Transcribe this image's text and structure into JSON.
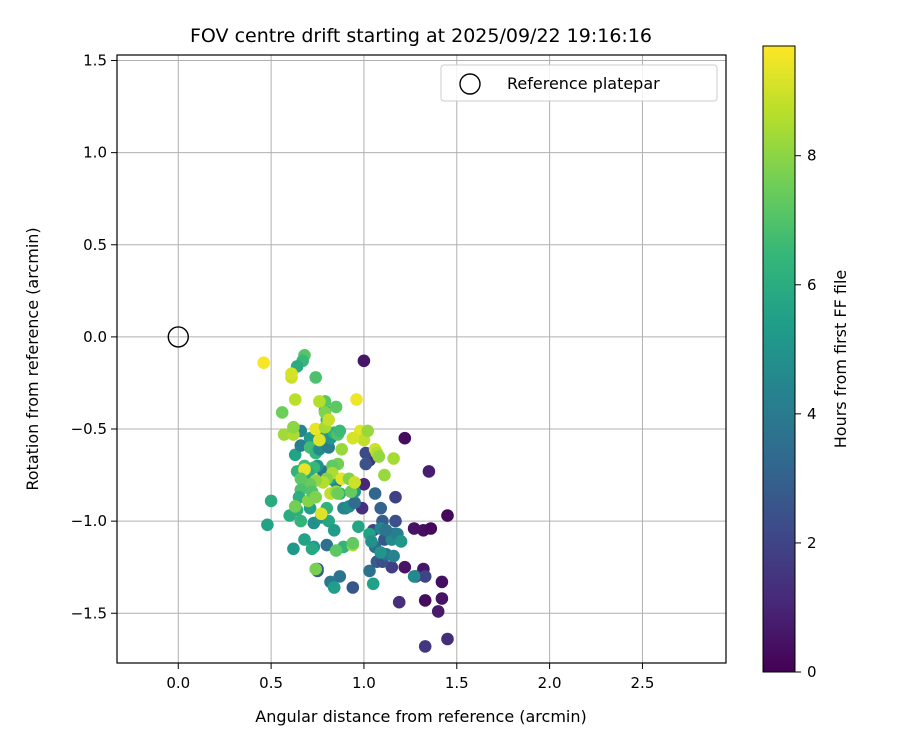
{
  "chart_data": {
    "type": "scatter",
    "title": "FOV centre drift starting at 2025/09/22 19:16:16",
    "xlabel": "Angular distance from reference (arcmin)",
    "ylabel": "Rotation from reference (arcmin)",
    "xlim": [
      -0.33,
      2.95
    ],
    "ylim": [
      -1.77,
      1.53
    ],
    "xticks": [
      0.0,
      0.5,
      1.0,
      1.5,
      2.0,
      2.5
    ],
    "xtick_labels": [
      "0.0",
      "0.5",
      "1.0",
      "1.5",
      "2.0",
      "2.5"
    ],
    "yticks": [
      -1.5,
      -1.0,
      -0.5,
      0.0,
      0.5,
      1.0,
      1.5
    ],
    "ytick_labels": [
      "−1.5",
      "−1.0",
      "−0.5",
      "0.0",
      "0.5",
      "1.0",
      "1.5"
    ],
    "grid": true,
    "legend": {
      "position": "top-right",
      "entries": [
        "Reference platepar"
      ]
    },
    "reference_point": {
      "x": 0.0,
      "y": 0.0
    },
    "colorbar": {
      "label": "Hours from first FF file",
      "min": 0,
      "max": 9.7,
      "ticks": [
        0,
        2,
        4,
        6,
        8
      ],
      "tick_labels": [
        "0",
        "2",
        "4",
        "6",
        "8"
      ],
      "colormap": [
        "#440154",
        "#482878",
        "#3e4989",
        "#31688e",
        "#26828e",
        "#1f9e89",
        "#35b779",
        "#6ece58",
        "#b5de2b",
        "#fde725"
      ]
    },
    "points": [
      [
        1.0,
        -0.13,
        0.6
      ],
      [
        1.22,
        -0.55,
        0.3
      ],
      [
        1.35,
        -0.73,
        0.8
      ],
      [
        1.45,
        -0.97,
        0.2
      ],
      [
        1.32,
        -1.05,
        0.4
      ],
      [
        1.27,
        -1.04,
        0.5
      ],
      [
        1.36,
        -1.04,
        0.2
      ],
      [
        1.32,
        -1.26,
        0.6
      ],
      [
        1.22,
        -1.25,
        0.5
      ],
      [
        1.42,
        -1.33,
        0.4
      ],
      [
        1.33,
        -1.43,
        0.3
      ],
      [
        1.42,
        -1.42,
        0.5
      ],
      [
        1.4,
        -1.49,
        0.7
      ],
      [
        1.45,
        -1.64,
        1.2
      ],
      [
        1.33,
        -1.68,
        1.6
      ],
      [
        1.19,
        -1.44,
        1.3
      ],
      [
        1.28,
        -1.3,
        2.2
      ],
      [
        1.33,
        -1.3,
        2.0
      ],
      [
        1.15,
        -1.25,
        1.8
      ],
      [
        1.17,
        -0.87,
        1.9
      ],
      [
        1.17,
        -1.0,
        2.4
      ],
      [
        1.16,
        -1.07,
        3.3
      ],
      [
        1.11,
        -1.1,
        2.6
      ],
      [
        1.1,
        -1.0,
        2.9
      ],
      [
        1.09,
        -0.93,
        3.1
      ],
      [
        1.06,
        -0.85,
        3.2
      ],
      [
        1.03,
        -0.67,
        1.4
      ],
      [
        1.01,
        -0.63,
        2.2
      ],
      [
        1.01,
        -0.69,
        2.5
      ],
      [
        0.99,
        -0.93,
        1.3
      ],
      [
        1.0,
        -0.8,
        1.1
      ],
      [
        1.05,
        -1.05,
        2.1
      ],
      [
        1.06,
        -1.14,
        3.4
      ],
      [
        1.03,
        -1.27,
        3.6
      ],
      [
        1.07,
        -1.22,
        2.8
      ],
      [
        1.1,
        -1.22,
        2.4
      ],
      [
        1.12,
        -1.18,
        3.7
      ],
      [
        1.16,
        -1.19,
        4.3
      ],
      [
        1.17,
        -1.07,
        4.1
      ],
      [
        1.27,
        -1.3,
        4.6
      ],
      [
        0.94,
        -1.36,
        2.6
      ],
      [
        0.9,
        -0.93,
        3.3
      ],
      [
        0.87,
        -1.3,
        3.7
      ],
      [
        0.82,
        -1.33,
        3.9
      ],
      [
        0.84,
        -1.36,
        5.4
      ],
      [
        0.8,
        -1.13,
        3.6
      ],
      [
        0.75,
        -1.26,
        2.2
      ],
      [
        0.75,
        -1.27,
        2.8
      ],
      [
        0.73,
        -1.14,
        5.1
      ],
      [
        0.72,
        -1.15,
        5.8
      ],
      [
        0.68,
        -1.1,
        5.6
      ],
      [
        0.62,
        -1.15,
        5.2
      ],
      [
        0.48,
        -1.02,
        5.6
      ],
      [
        0.5,
        -0.89,
        5.9
      ],
      [
        0.6,
        -0.97,
        6.0
      ],
      [
        0.64,
        -0.94,
        6.1
      ],
      [
        0.66,
        -1.0,
        6.3
      ],
      [
        0.73,
        -1.01,
        4.8
      ],
      [
        0.71,
        -0.93,
        5.5
      ],
      [
        0.77,
        -0.98,
        5.0
      ],
      [
        0.8,
        -0.93,
        6.2
      ],
      [
        0.81,
        -1.0,
        5.7
      ],
      [
        0.84,
        -1.05,
        5.3
      ],
      [
        0.89,
        -0.93,
        4.5
      ],
      [
        0.92,
        -0.92,
        4.7
      ],
      [
        0.95,
        -0.9,
        3.4
      ],
      [
        0.95,
        -0.84,
        5.2
      ],
      [
        0.87,
        -0.85,
        5.8
      ],
      [
        0.85,
        -0.79,
        4.2
      ],
      [
        0.82,
        -0.77,
        5.4
      ],
      [
        0.78,
        -0.73,
        3.6
      ],
      [
        0.75,
        -0.7,
        4.9
      ],
      [
        0.73,
        -0.71,
        6.5
      ],
      [
        0.7,
        -0.74,
        6.0
      ],
      [
        0.68,
        -0.7,
        6.8
      ],
      [
        0.64,
        -0.73,
        6.3
      ],
      [
        0.63,
        -0.64,
        5.6
      ],
      [
        0.66,
        -0.59,
        4.1
      ],
      [
        0.66,
        -0.51,
        4.4
      ],
      [
        0.71,
        -0.55,
        5.2
      ],
      [
        0.71,
        -0.6,
        6.7
      ],
      [
        0.74,
        -0.63,
        6.4
      ],
      [
        0.76,
        -0.61,
        4.6
      ],
      [
        0.78,
        -0.53,
        5.7
      ],
      [
        0.81,
        -0.6,
        4.1
      ],
      [
        0.82,
        -0.55,
        5.1
      ],
      [
        0.84,
        -0.52,
        6.3
      ],
      [
        0.86,
        -0.53,
        7.0
      ],
      [
        0.87,
        -0.51,
        6.6
      ],
      [
        0.8,
        -0.45,
        6.3
      ],
      [
        0.79,
        -0.4,
        5.8
      ],
      [
        0.79,
        -0.35,
        7.1
      ],
      [
        0.74,
        -0.22,
        6.9
      ],
      [
        0.68,
        -0.1,
        7.1
      ],
      [
        0.67,
        -0.13,
        6.5
      ],
      [
        0.64,
        -0.16,
        5.9
      ],
      [
        0.56,
        -0.41,
        7.5
      ],
      [
        0.57,
        -0.53,
        8.3
      ],
      [
        0.62,
        -0.53,
        8.5
      ],
      [
        0.62,
        -0.49,
        8.0
      ],
      [
        0.63,
        -0.34,
        8.7
      ],
      [
        0.61,
        -0.22,
        8.9
      ],
      [
        0.61,
        -0.2,
        9.1
      ],
      [
        0.46,
        -0.14,
        9.6
      ],
      [
        0.85,
        -0.38,
        7.2
      ],
      [
        0.79,
        -0.41,
        7.8
      ],
      [
        0.76,
        -0.35,
        8.6
      ],
      [
        0.74,
        -0.5,
        9.4
      ],
      [
        0.76,
        -0.56,
        9.2
      ],
      [
        0.79,
        -0.49,
        8.4
      ],
      [
        0.81,
        -0.45,
        8.9
      ],
      [
        0.96,
        -0.34,
        9.5
      ],
      [
        0.98,
        -0.51,
        9.3
      ],
      [
        1.0,
        -0.56,
        8.8
      ],
      [
        1.02,
        -0.51,
        8.2
      ],
      [
        1.06,
        -0.61,
        9.0
      ],
      [
        1.07,
        -0.63,
        8.6
      ],
      [
        1.08,
        -0.65,
        8.1
      ],
      [
        1.11,
        -0.75,
        8.2
      ],
      [
        1.16,
        -0.66,
        8.4
      ],
      [
        0.94,
        -0.55,
        9.1
      ],
      [
        0.88,
        -0.61,
        8.2
      ],
      [
        0.86,
        -0.69,
        7.6
      ],
      [
        0.83,
        -0.7,
        7.3
      ],
      [
        0.83,
        -0.74,
        8.5
      ],
      [
        0.8,
        -0.77,
        7.9
      ],
      [
        0.78,
        -0.79,
        8.6
      ],
      [
        0.74,
        -0.78,
        8.1
      ],
      [
        0.71,
        -0.8,
        7.4
      ],
      [
        0.68,
        -0.72,
        9.4
      ],
      [
        0.66,
        -0.77,
        7.2
      ],
      [
        0.66,
        -0.83,
        6.9
      ],
      [
        0.65,
        -0.87,
        6.1
      ],
      [
        0.63,
        -0.92,
        7.6
      ],
      [
        0.7,
        -0.89,
        7.9
      ],
      [
        0.72,
        -0.84,
        7.0
      ],
      [
        0.74,
        -0.87,
        7.8
      ],
      [
        0.77,
        -0.96,
        9.2
      ],
      [
        0.82,
        -0.85,
        8.8
      ],
      [
        0.85,
        -0.84,
        8.2
      ],
      [
        0.86,
        -0.85,
        7.5
      ],
      [
        0.88,
        -0.77,
        9.3
      ],
      [
        0.92,
        -0.77,
        7.8
      ],
      [
        0.93,
        -0.84,
        7.4
      ],
      [
        0.95,
        -0.79,
        9.0
      ],
      [
        0.89,
        -1.14,
        6.3
      ],
      [
        0.85,
        -1.16,
        7.2
      ],
      [
        0.94,
        -1.13,
        8.5
      ],
      [
        0.94,
        -1.12,
        7.3
      ],
      [
        0.74,
        -1.26,
        7.7
      ],
      [
        0.97,
        -1.03,
        5.7
      ],
      [
        1.03,
        -1.07,
        5.6
      ],
      [
        1.04,
        -1.11,
        4.9
      ],
      [
        1.05,
        -1.34,
        5.5
      ],
      [
        1.09,
        -1.17,
        5.0
      ],
      [
        1.09,
        -1.04,
        4.4
      ],
      [
        1.15,
        -1.1,
        4.6
      ],
      [
        1.18,
        -1.07,
        4.2
      ],
      [
        1.2,
        -1.11,
        5.1
      ],
      [
        1.12,
        -1.05,
        3.8
      ]
    ]
  }
}
